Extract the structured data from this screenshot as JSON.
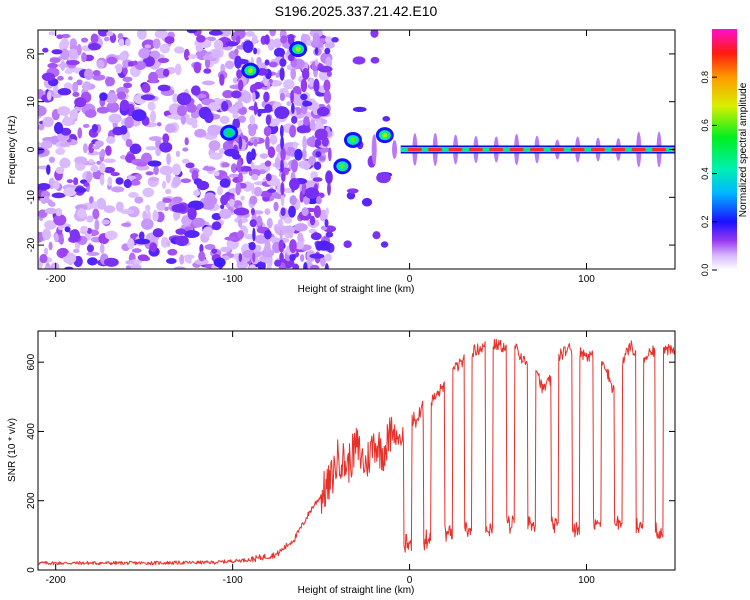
{
  "title": "S196.2025.337.21.42.E10",
  "colors": {
    "snr_line": "#e8302a",
    "axis": "#000000",
    "ridge_core": "#ff2a2a",
    "low_amp": "#8a3cf0"
  },
  "chart_data": [
    {
      "type": "heatmap",
      "title": "S196.2025.337.21.42.E10",
      "xlabel": "Height of straight line (km)",
      "ylabel": "Frequency (Hz)",
      "xlim": [
        -210,
        150
      ],
      "ylim": [
        -25,
        25
      ],
      "xticks": [
        -200,
        -100,
        0,
        100
      ],
      "yticks": [
        -20,
        -10,
        0,
        10,
        20
      ],
      "colorbar": {
        "label": "Normalized spectral amplitude",
        "range": [
          0,
          1
        ],
        "ticks": [
          0.0,
          0.2,
          0.4,
          0.6,
          0.8
        ],
        "tick_labels": [
          "0.0",
          "0.2",
          "0.4",
          "0.6",
          "0.8"
        ]
      },
      "features": [
        {
          "name": "carrier-line",
          "x_range": [
            -5,
            150
          ],
          "frequency": 0,
          "amplitude": 0.95
        },
        {
          "name": "strong-blob-1",
          "x": -90,
          "frequency": 16.5,
          "amplitude": 0.45
        },
        {
          "name": "strong-blob-2",
          "x": -63,
          "frequency": 21,
          "amplitude": 0.45
        },
        {
          "name": "strong-blob-3",
          "x": -102,
          "frequency": 3.5,
          "amplitude": 0.35
        },
        {
          "name": "strong-blob-4",
          "x": -38,
          "frequency": -3.5,
          "amplitude": 0.4
        },
        {
          "name": "strong-blob-5",
          "x": -32,
          "frequency": 2,
          "amplitude": 0.4
        },
        {
          "name": "strong-blob-6",
          "x": -14,
          "frequency": 3,
          "amplitude": 0.45
        }
      ]
    },
    {
      "type": "line",
      "xlabel": "Height of straight line (km)",
      "ylabel": "SNR (10 * v/v)",
      "xlim": [
        -210,
        150
      ],
      "ylim": [
        0,
        690
      ],
      "xticks": [
        -200,
        -100,
        0,
        100
      ],
      "yticks": [
        0,
        200,
        400,
        600
      ],
      "series": [
        {
          "name": "SNR",
          "x": [
            -210,
            -150,
            -110,
            -90,
            -75,
            -65,
            -55,
            -45,
            -40,
            -35,
            -30,
            -25,
            -20,
            -15,
            -10,
            -5,
            0,
            5,
            10,
            15,
            20,
            25,
            30,
            35,
            40,
            45,
            50,
            55,
            60,
            65,
            70,
            75,
            80,
            85,
            90,
            95,
            100,
            105,
            110,
            115,
            120,
            125,
            130,
            135,
            140,
            150
          ],
          "y": [
            20,
            20,
            22,
            30,
            45,
            90,
            180,
            250,
            330,
            300,
            360,
            300,
            370,
            340,
            400,
            380,
            420,
            440,
            480,
            500,
            540,
            580,
            600,
            630,
            640,
            650,
            650,
            640,
            640,
            600,
            620,
            520,
            550,
            620,
            640,
            630,
            620,
            620,
            600,
            520,
            600,
            650,
            600,
            620,
            640,
            630
          ]
        }
      ],
      "dropouts": {
        "x": [
          -1,
          10,
          22,
          33,
          45,
          57,
          69,
          82,
          94,
          106,
          118,
          130,
          141
        ],
        "floor": [
          60,
          80,
          90,
          100,
          110,
          120,
          120,
          120,
          110,
          120,
          120,
          110,
          100
        ]
      }
    }
  ]
}
